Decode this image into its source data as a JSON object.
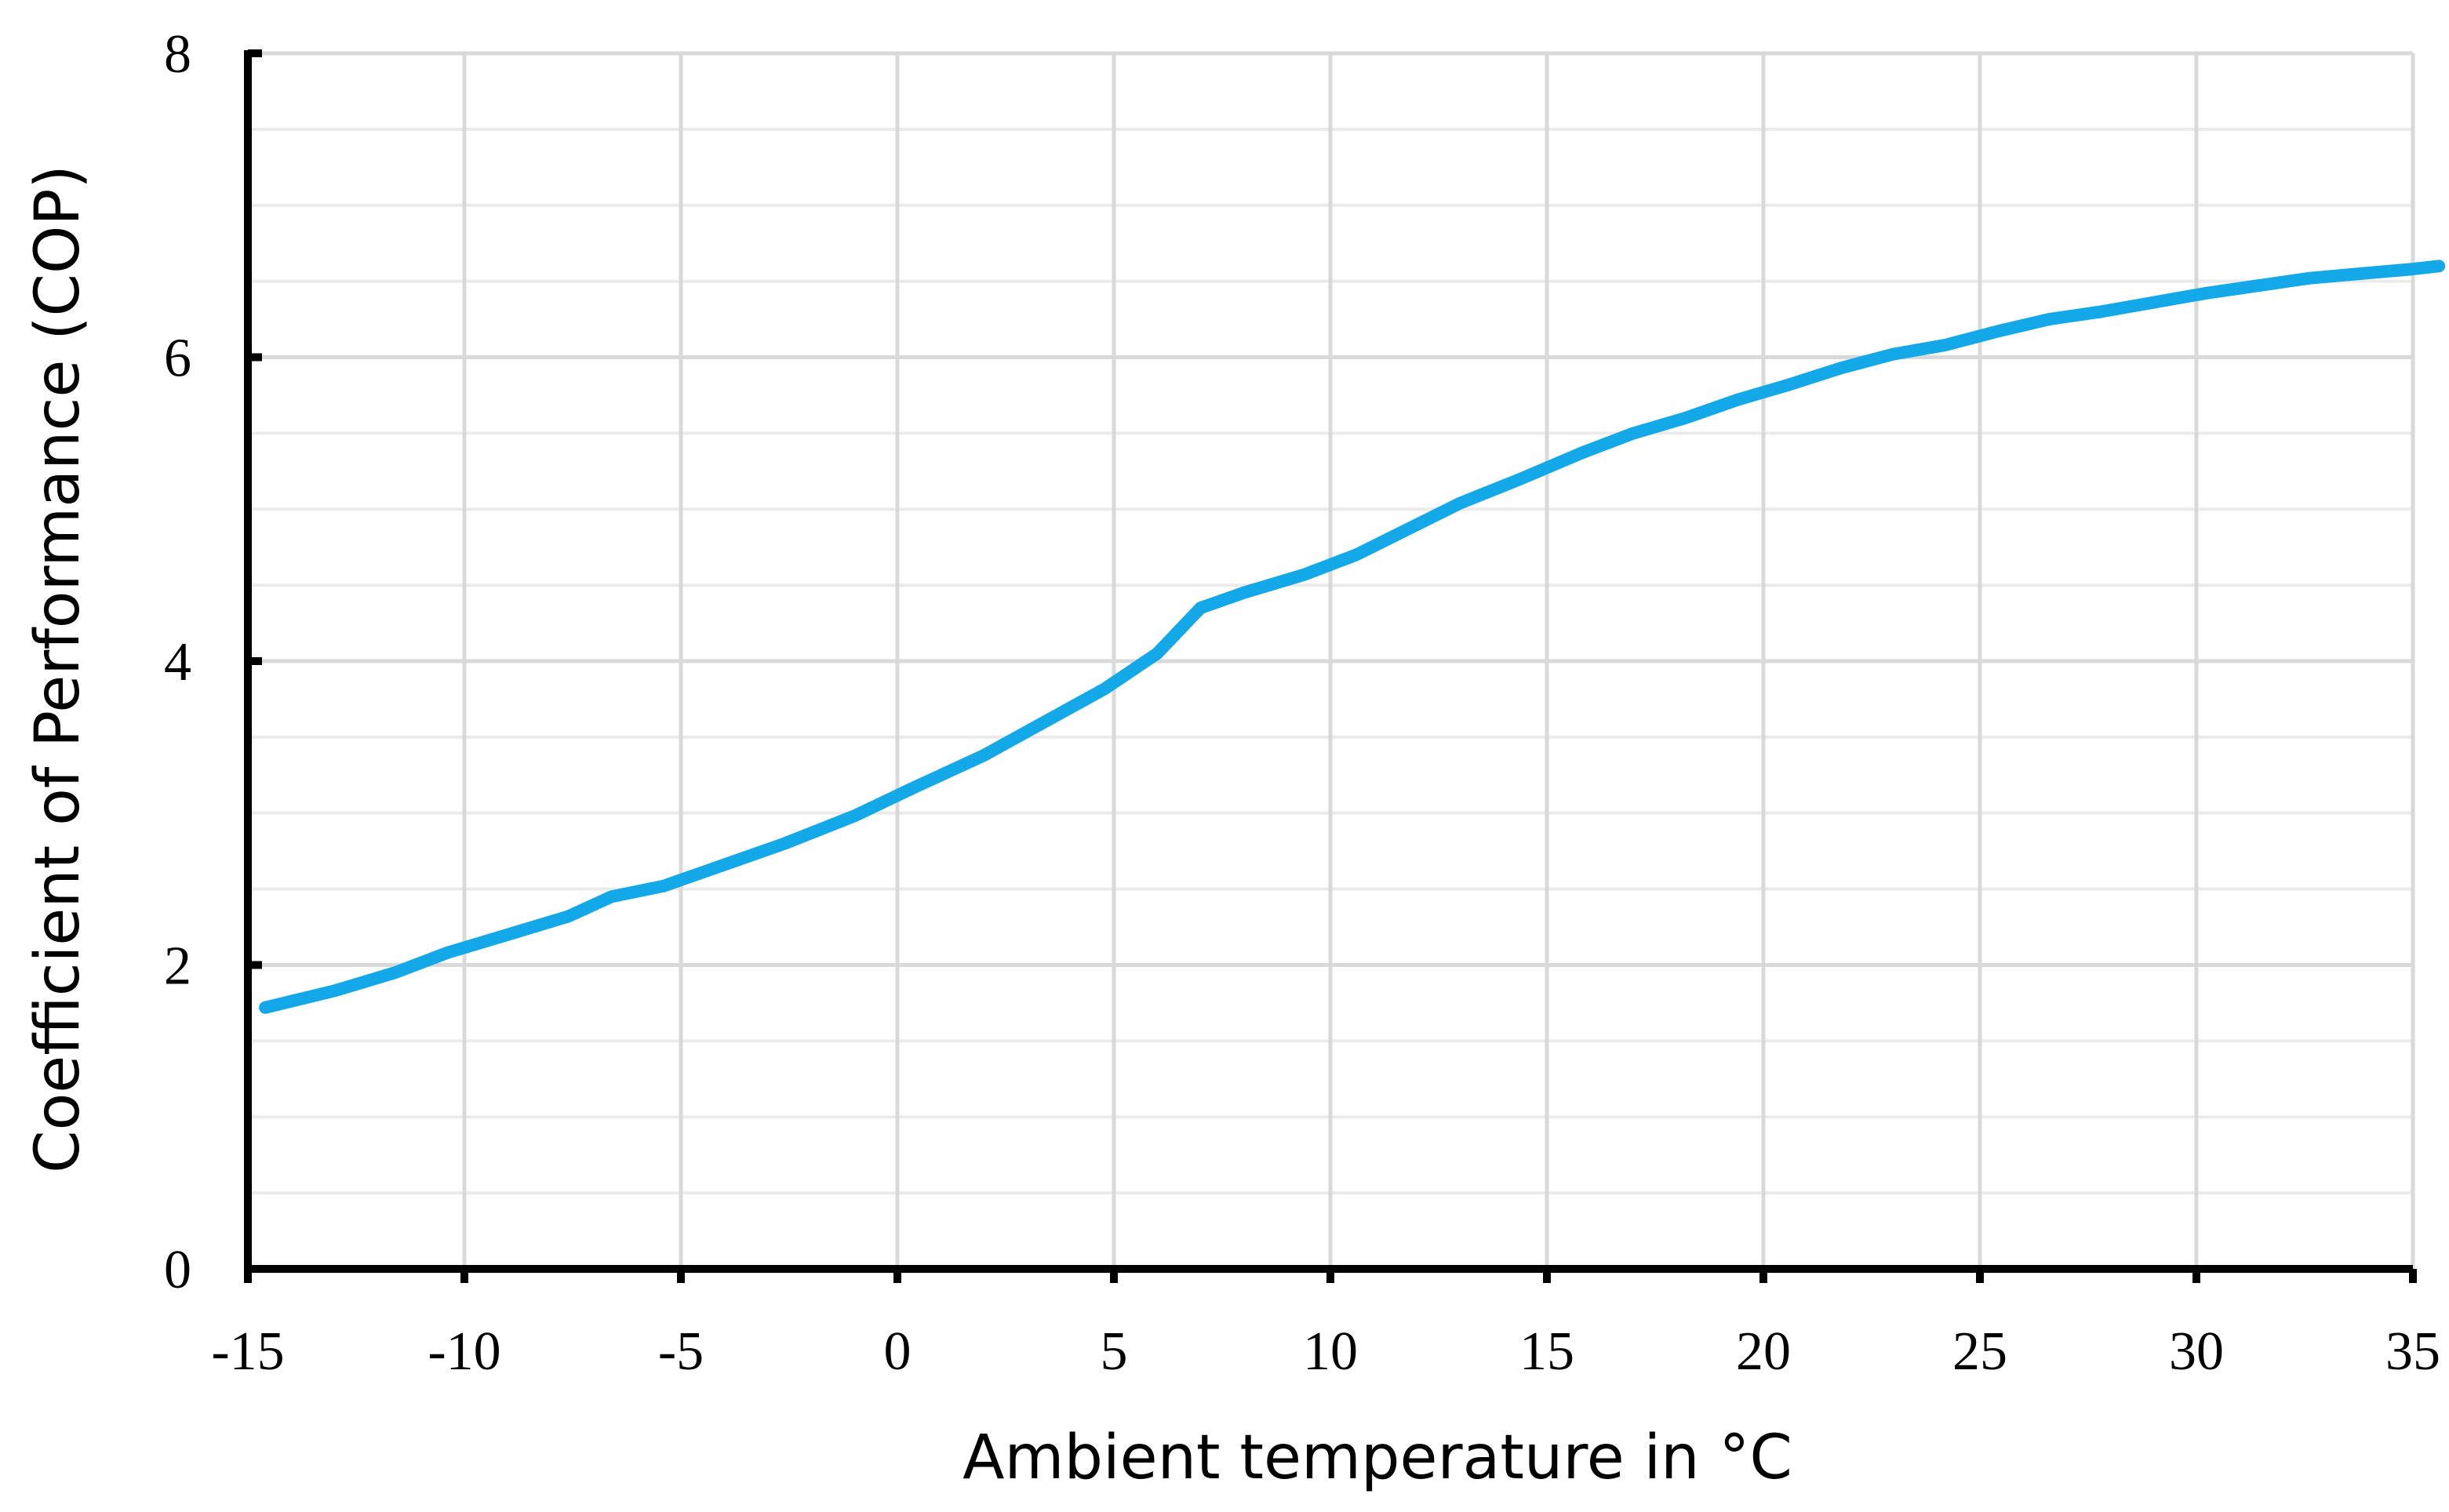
{
  "chart_data": {
    "type": "line",
    "title": "",
    "xlabel": "Ambient temperature in °C",
    "ylabel": "Coefficient of Performance (COP)",
    "xlim": [
      -15,
      35
    ],
    "ylim": [
      0,
      8
    ],
    "x_ticks": [
      -15,
      -10,
      -5,
      0,
      5,
      10,
      15,
      20,
      25,
      30,
      35
    ],
    "y_ticks": [
      0,
      2,
      4,
      6,
      8
    ],
    "x_tick_labels": [
      "-15",
      "-10",
      "-5",
      "0",
      "5",
      "10",
      "15",
      "20",
      "25",
      "30",
      "35"
    ],
    "y_tick_labels": [
      "0",
      "2",
      "4",
      "6",
      "8"
    ],
    "grid": true,
    "legend": "none",
    "series": [
      {
        "color": "#13a8e8",
        "x": [
          -14.6,
          -13.0,
          -11.6,
          -10.4,
          -9.0,
          -7.6,
          -6.6,
          -5.4,
          -3.8,
          -2.6,
          -1.0,
          0.4,
          2.0,
          3.4,
          4.8,
          6.0,
          7.0,
          8.0,
          9.4,
          10.6,
          11.8,
          13.0,
          14.4,
          15.8,
          17.0,
          18.2,
          19.4,
          20.6,
          21.8,
          23.0,
          24.2,
          25.4,
          26.6,
          27.8,
          29.0,
          30.2,
          31.4,
          32.6,
          33.8,
          35.0,
          35.6
        ],
        "y": [
          1.72,
          1.83,
          1.95,
          2.08,
          2.2,
          2.32,
          2.45,
          2.52,
          2.68,
          2.8,
          2.98,
          3.17,
          3.38,
          3.6,
          3.82,
          4.05,
          4.35,
          4.45,
          4.57,
          4.7,
          4.87,
          5.04,
          5.2,
          5.37,
          5.5,
          5.6,
          5.72,
          5.82,
          5.93,
          6.02,
          6.08,
          6.17,
          6.25,
          6.3,
          6.36,
          6.42,
          6.47,
          6.52,
          6.55,
          6.58,
          6.6
        ]
      }
    ]
  }
}
